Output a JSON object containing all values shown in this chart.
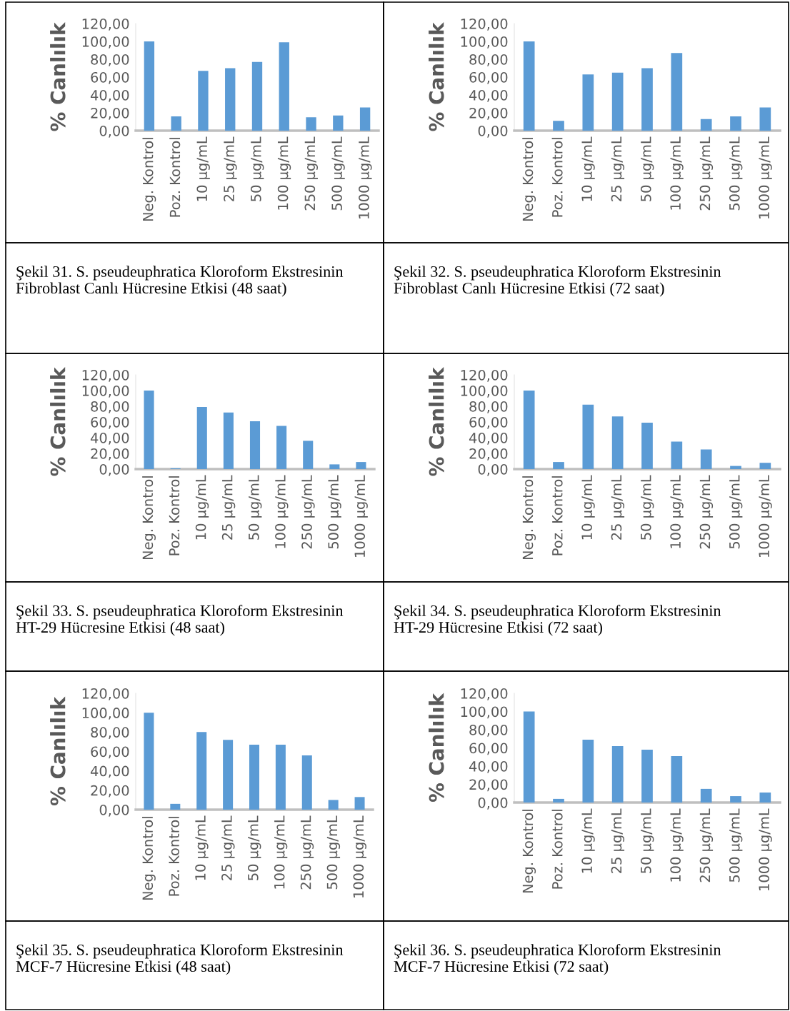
{
  "chart_data": [
    {
      "type": "bar",
      "ylabel": "% Canlılık",
      "categories": [
        "Neg. Kontrol",
        "Poz. Kontrol",
        "10 µg/mL",
        "25 µg/mL",
        "50 µg/mL",
        "100 µg/mL",
        "250 µg/mL",
        "500 µg/mL",
        "1000 µg/mL"
      ],
      "values": [
        100,
        16,
        67,
        70,
        77,
        99,
        15,
        17,
        26
      ],
      "color": "#5b9bd5",
      "ylim": [
        0,
        120
      ],
      "yticks": [
        {
          "value": 0,
          "label": "0,00"
        },
        {
          "value": 20,
          "label": "20,00"
        },
        {
          "value": 40,
          "label": "40,00"
        },
        {
          "value": 60,
          "label": "60,00"
        },
        {
          "value": 80,
          "label": "80,00"
        },
        {
          "value": 100,
          "label": "100,00"
        },
        {
          "value": 120,
          "label": "120,00"
        }
      ],
      "grid": false,
      "annotations": [
        "Şekil 31. S. pseudeuphratica Kloroform Ekstresinin Fibroblast Canlı Hücresine Etkisi (48 saat)"
      ]
    },
    {
      "type": "bar",
      "ylabel": "% Canlılık",
      "categories": [
        "Neg. Kontrol",
        "Poz. Kontrol",
        "10 µg/mL",
        "25 µg/mL",
        "50 µg/mL",
        "100 µg/mL",
        "250 µg/mL",
        "500 µg/mL",
        "1000 µg/mL"
      ],
      "values": [
        100,
        11,
        63,
        65,
        70,
        87,
        13,
        16,
        26
      ],
      "color": "#5b9bd5",
      "ylim": [
        0,
        120
      ],
      "yticks": [
        {
          "value": 0,
          "label": "0,00"
        },
        {
          "value": 20,
          "label": "20,00"
        },
        {
          "value": 40,
          "label": "40,00"
        },
        {
          "value": 60,
          "label": "60,00"
        },
        {
          "value": 80,
          "label": "80,00"
        },
        {
          "value": 100,
          "label": "100,00"
        },
        {
          "value": 120,
          "label": "120,00"
        }
      ],
      "grid": false,
      "annotations": [
        "Şekil 32. S. pseudeuphratica Kloroform Ekstresinin Fibroblast Canlı Hücresine Etkisi (72 saat)"
      ]
    },
    {
      "type": "bar",
      "ylabel": "% Canlılık",
      "categories": [
        "Neg. Kontrol",
        "Poz. Kontrol",
        "10 µg/mL",
        "25 µg/mL",
        "50 µg/mL",
        "100 µg/mL",
        "250 µg/mL",
        "500 µg/mL",
        "1000 µg/mL"
      ],
      "values": [
        100,
        1,
        79,
        72,
        61,
        55,
        36,
        6,
        9
      ],
      "color": "#5b9bd5",
      "ylim": [
        0,
        120
      ],
      "yticks": [
        {
          "value": 0,
          "label": "0,00"
        },
        {
          "value": 20,
          "label": "20,00"
        },
        {
          "value": 40,
          "label": "40,00"
        },
        {
          "value": 60,
          "label": "60,00"
        },
        {
          "value": 80,
          "label": "80,00"
        },
        {
          "value": 100,
          "label": "100,00"
        },
        {
          "value": 120,
          "label": "120,00"
        }
      ],
      "grid": false,
      "annotations": [
        "Şekil 33. S. pseudeuphratica Kloroform Ekstresinin HT-29 Hücresine Etkisi (48 saat)"
      ]
    },
    {
      "type": "bar",
      "ylabel": "% Canlılık",
      "categories": [
        "Neg. Kontrol",
        "Poz. Kontrol",
        "10 µg/mL",
        "25 µg/mL",
        "50 µg/mL",
        "100 µg/mL",
        "250 µg/mL",
        "500 µg/mL",
        "1000 µg/mL"
      ],
      "values": [
        100,
        9,
        82,
        67,
        59,
        35,
        25,
        4,
        8
      ],
      "color": "#5b9bd5",
      "ylim": [
        0,
        120
      ],
      "yticks": [
        {
          "value": 0,
          "label": "0,00"
        },
        {
          "value": 20,
          "label": "20,00"
        },
        {
          "value": 40,
          "label": "40,00"
        },
        {
          "value": 60,
          "label": "60,00"
        },
        {
          "value": 80,
          "label": "80,00"
        },
        {
          "value": 100,
          "label": "100,00"
        },
        {
          "value": 120,
          "label": "120,00"
        }
      ],
      "grid": false,
      "annotations": [
        "Şekil 34. S. pseudeuphratica Kloroform Ekstresinin HT-29 Hücresine Etkisi (72 saat)"
      ]
    },
    {
      "type": "bar",
      "ylabel": "% Canlılık",
      "categories": [
        "Neg. Kontrol",
        "Poz. Kontrol",
        "10 µg/mL",
        "25 µg/mL",
        "50 µg/mL",
        "100 µg/mL",
        "250 µg/mL",
        "500 µg/mL",
        "1000 µg/mL"
      ],
      "values": [
        100,
        6,
        80,
        72,
        67,
        67,
        56,
        10,
        13
      ],
      "color": "#5b9bd5",
      "ylim": [
        0,
        120
      ],
      "yticks": [
        {
          "value": 0,
          "label": "0,00"
        },
        {
          "value": 20,
          "label": "20,00"
        },
        {
          "value": 40,
          "label": "40,00"
        },
        {
          "value": 60,
          "label": "60,00"
        },
        {
          "value": 80,
          "label": "80,00"
        },
        {
          "value": 100,
          "label": "100,00"
        },
        {
          "value": 120,
          "label": "120,00"
        }
      ],
      "grid": false,
      "annotations": [
        "Şekil 35. S. pseudeuphratica Kloroform Ekstresinin MCF-7 Hücresine Etkisi (48 saat)"
      ]
    },
    {
      "type": "bar",
      "ylabel": "% Canlılık",
      "categories": [
        "Neg. Kontrol",
        "Poz. Kontrol",
        "10 µg/mL",
        "25 µg/mL",
        "50 µg/mL",
        "100 µg/mL",
        "250 µg/mL",
        "500 µg/mL",
        "1000 µg/mL"
      ],
      "values": [
        100,
        4,
        69,
        62,
        58,
        51,
        15,
        7,
        11
      ],
      "color": "#5b9bd5",
      "ylim": [
        0,
        120
      ],
      "yticks": [
        {
          "value": 0,
          "label": "0,00"
        },
        {
          "value": 20,
          "label": "20,00"
        },
        {
          "value": 40,
          "label": "40,00"
        },
        {
          "value": 60,
          "label": "60,00"
        },
        {
          "value": 80,
          "label": "80,00"
        },
        {
          "value": 100,
          "label": "100,00"
        },
        {
          "value": 120,
          "label": "120,00"
        }
      ],
      "grid": false,
      "annotations": [
        "Şekil 36. S. pseudeuphratica Kloroform Ekstresinin MCF-7 Hücresine Etkisi (72 saat)"
      ]
    }
  ]
}
